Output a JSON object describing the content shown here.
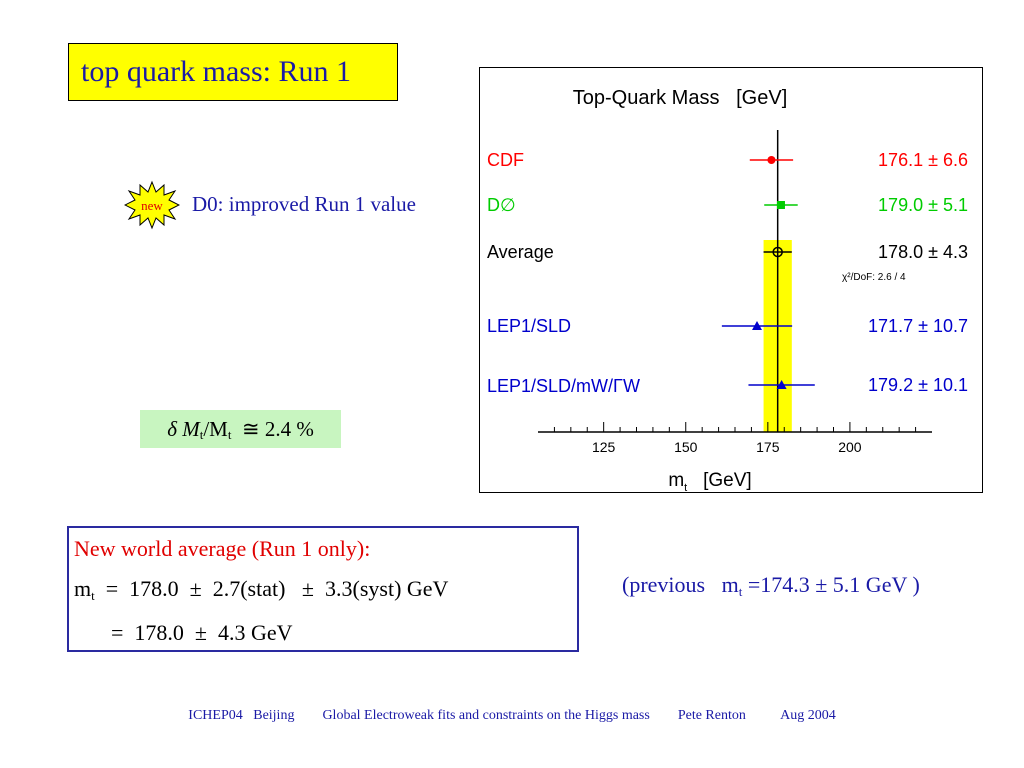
{
  "slide": {
    "title": "top quark mass: Run 1",
    "new_badge": "new",
    "d0_note": "D0: improved Run 1 value",
    "delta": {
      "lead": "δ M",
      "sub1": "t",
      "mid": "/M",
      "sub2": "t",
      "tail": "  ≅ 2.4 %"
    },
    "world_average": {
      "heading": "New world average (Run 1 only):",
      "line1_m": "m",
      "line1_sub": "t",
      "line1_rest": "  =  178.0  ±  2.7(stat)   ±  3.3(syst) GeV",
      "line2": "=  178.0  ±  4.3 GeV"
    },
    "previous": {
      "lead": "(previous   m",
      "sub": "t",
      "rest": " =174.3 ± 5.1 GeV )"
    },
    "footer": "ICHEP04   Beijing        Global Electroweak fits and constraints on the Higgs mass        Pete Renton          Aug 2004"
  },
  "chart_data": {
    "type": "scatter",
    "title": "Top-Quark Mass   [GeV]",
    "xlabel": "m",
    "xlabel_sub": "t",
    "xlabel_unit": "   [GeV]",
    "xlim": [
      105,
      225
    ],
    "xticks": [
      125,
      150,
      175,
      200
    ],
    "average": {
      "value": 178.0,
      "error": 4.3
    },
    "chi2_label": "χ²/DoF: 2.6 / 4",
    "entries": [
      {
        "name": "CDF",
        "value": 176.1,
        "error": 6.6,
        "label": "176.1 ± 6.6",
        "color": "#ff0000",
        "marker": "circle"
      },
      {
        "name": "D∅",
        "value": 179.0,
        "error": 5.1,
        "label": "179.0 ± 5.1",
        "color": "#00cc00",
        "marker": "square"
      },
      {
        "name": "Average",
        "value": 178.0,
        "error": 4.3,
        "label": "178.0 ± 4.3",
        "color": "#000000",
        "marker": "open-circle"
      },
      {
        "name": "LEP1/SLD",
        "value": 171.7,
        "error": 10.7,
        "label": "171.7 ± 10.7",
        "color": "#0000cc",
        "marker": "triangle"
      },
      {
        "name": "LEP1/SLD/mW/ΓW",
        "value": 179.2,
        "error": 10.1,
        "label": "179.2 ± 10.1",
        "color": "#0000cc",
        "marker": "triangle"
      }
    ],
    "colors": {
      "band": "#ffff00",
      "axis": "#000000"
    }
  }
}
